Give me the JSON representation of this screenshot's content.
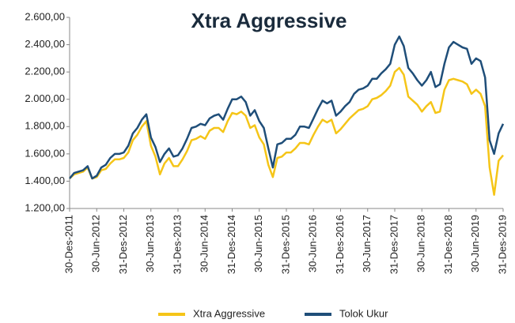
{
  "chart_data": {
    "type": "line",
    "title": "Xtra Aggressive",
    "categories": [
      "30-Des-2011",
      null,
      null,
      null,
      null,
      null,
      "30-Jun-2012",
      null,
      null,
      null,
      null,
      null,
      "31-Des-2012",
      null,
      null,
      null,
      null,
      null,
      "30-Jun-2013",
      null,
      null,
      null,
      null,
      null,
      "31-Des-2013",
      null,
      null,
      null,
      null,
      null,
      "30-Jun-2014",
      null,
      null,
      null,
      null,
      null,
      "31-Des-2014",
      null,
      null,
      null,
      null,
      null,
      "30-Jun-2015",
      null,
      null,
      null,
      null,
      null,
      "31-Des-2015",
      null,
      null,
      null,
      null,
      null,
      "30-Jun-2016",
      null,
      null,
      null,
      null,
      null,
      "31-Des-2016",
      null,
      null,
      null,
      null,
      null,
      "30-Jun-2017",
      null,
      null,
      null,
      null,
      null,
      "31-Des-2017",
      null,
      null,
      null,
      null,
      null,
      "30-Jun-2018",
      null,
      null,
      null,
      null,
      null,
      "31-Des-2018",
      null,
      null,
      null,
      null,
      null,
      "30-Jun-2019",
      null,
      null,
      null,
      null,
      null,
      "31-Des-2019"
    ],
    "series": [
      {
        "name": "Xtra Aggressive",
        "color": "#f5c518",
        "values": [
          1420,
          1450,
          1460,
          1470,
          1500,
          1420,
          1430,
          1480,
          1490,
          1530,
          1560,
          1560,
          1570,
          1610,
          1700,
          1740,
          1800,
          1840,
          1660,
          1580,
          1450,
          1530,
          1570,
          1510,
          1510,
          1560,
          1620,
          1700,
          1710,
          1730,
          1710,
          1770,
          1790,
          1790,
          1760,
          1840,
          1900,
          1890,
          1910,
          1880,
          1790,
          1810,
          1720,
          1670,
          1520,
          1430,
          1570,
          1580,
          1610,
          1610,
          1640,
          1680,
          1680,
          1670,
          1740,
          1800,
          1850,
          1830,
          1850,
          1750,
          1780,
          1820,
          1860,
          1890,
          1920,
          1930,
          1950,
          2000,
          2010,
          2030,
          2060,
          2100,
          2200,
          2230,
          2180,
          2020,
          1990,
          1960,
          1910,
          1950,
          1980,
          1900,
          1910,
          2070,
          2140,
          2150,
          2140,
          2130,
          2110,
          2040,
          2070,
          2040,
          1950,
          1500,
          1300,
          1550,
          1590
        ]
      },
      {
        "name": "Tolok Ukur",
        "color": "#1f4e79",
        "values": [
          1420,
          1460,
          1470,
          1480,
          1510,
          1420,
          1440,
          1500,
          1520,
          1570,
          1600,
          1600,
          1610,
          1660,
          1750,
          1790,
          1850,
          1890,
          1720,
          1650,
          1540,
          1600,
          1640,
          1580,
          1590,
          1640,
          1710,
          1790,
          1800,
          1820,
          1810,
          1860,
          1880,
          1890,
          1850,
          1930,
          2000,
          2000,
          2020,
          1980,
          1880,
          1920,
          1840,
          1790,
          1640,
          1500,
          1670,
          1680,
          1710,
          1710,
          1740,
          1800,
          1800,
          1790,
          1860,
          1930,
          1990,
          1970,
          1990,
          1880,
          1910,
          1950,
          1980,
          2040,
          2070,
          2080,
          2100,
          2150,
          2150,
          2190,
          2220,
          2260,
          2400,
          2460,
          2390,
          2230,
          2190,
          2140,
          2100,
          2140,
          2200,
          2090,
          2110,
          2260,
          2380,
          2420,
          2400,
          2380,
          2370,
          2260,
          2300,
          2280,
          2160,
          1700,
          1600,
          1750,
          1820
        ]
      }
    ],
    "ylim": [
      1200,
      2600
    ],
    "yticks": [
      {
        "value": 1200,
        "label": "1.200,00"
      },
      {
        "value": 1400,
        "label": "1.400,00"
      },
      {
        "value": 1600,
        "label": "1.600,00"
      },
      {
        "value": 1800,
        "label": "1.800,00"
      },
      {
        "value": 2000,
        "label": "2.000,00"
      },
      {
        "value": 2200,
        "label": "2.200,00"
      },
      {
        "value": 2400,
        "label": "2.400,00"
      },
      {
        "value": 2600,
        "label": "2.600,00"
      }
    ],
    "legend": "bottom"
  }
}
